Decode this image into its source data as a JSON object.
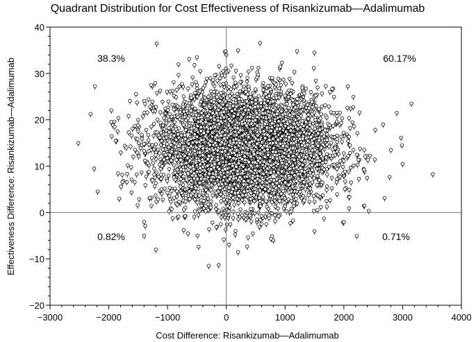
{
  "chart_data": {
    "type": "scatter",
    "title": "Quadrant Distribution for Cost Effectiveness of Risankizumab—Adalimumab",
    "xlabel": "Cost Difference: Risankizumab—Adalimumab",
    "ylabel": "Effectiveness Difference: Risankizumab—Adalimumab",
    "xlim": [
      -3000,
      4000
    ],
    "ylim": [
      -20,
      40
    ],
    "x_ticks": [
      -3000,
      -2000,
      -1000,
      0,
      1000,
      2000,
      3000,
      4000
    ],
    "y_ticks": [
      -20,
      -10,
      0,
      10,
      20,
      30,
      40
    ],
    "x_tick_labels": [
      "−3000",
      "−2000",
      "−1000",
      "0",
      "1000",
      "2000",
      "3000",
      "4000"
    ],
    "y_tick_labels": [
      "−20",
      "−10",
      "0",
      "10",
      "20",
      "30",
      "40"
    ],
    "reference_lines": {
      "x": 0,
      "y": 0
    },
    "quadrant_labels": {
      "upper_left": "38.3%",
      "upper_right": "60.17%",
      "lower_left": "0.82%",
      "lower_right": "0.71%"
    },
    "marker": "circle-with-tail",
    "grid": false,
    "legend": "none",
    "series": [
      {
        "distribution": "bivariate normal cloud",
        "n_points": 5000,
        "x_mean": 300,
        "x_sd": 750,
        "y_mean": 14,
        "y_sd": 6.3,
        "sample_points": [
          [
            -2250,
            9.5
          ],
          [
            -1900,
            18.5
          ],
          [
            -1850,
            17.5
          ],
          [
            -1700,
            14
          ],
          [
            -1500,
            20
          ],
          [
            -1400,
            -5
          ],
          [
            -1200,
            -8
          ],
          [
            -500,
            33.5
          ],
          [
            0,
            34
          ],
          [
            200,
            35
          ],
          [
            1500,
            34.5
          ],
          [
            -300,
            -11.5
          ],
          [
            200,
            -8.5
          ],
          [
            800,
            -6
          ],
          [
            1500,
            -4
          ],
          [
            2350,
            1.5
          ],
          [
            3000,
            10.5
          ],
          [
            3150,
            23.5
          ],
          [
            2900,
            21.5
          ],
          [
            2800,
            13.5
          ]
        ]
      }
    ]
  }
}
